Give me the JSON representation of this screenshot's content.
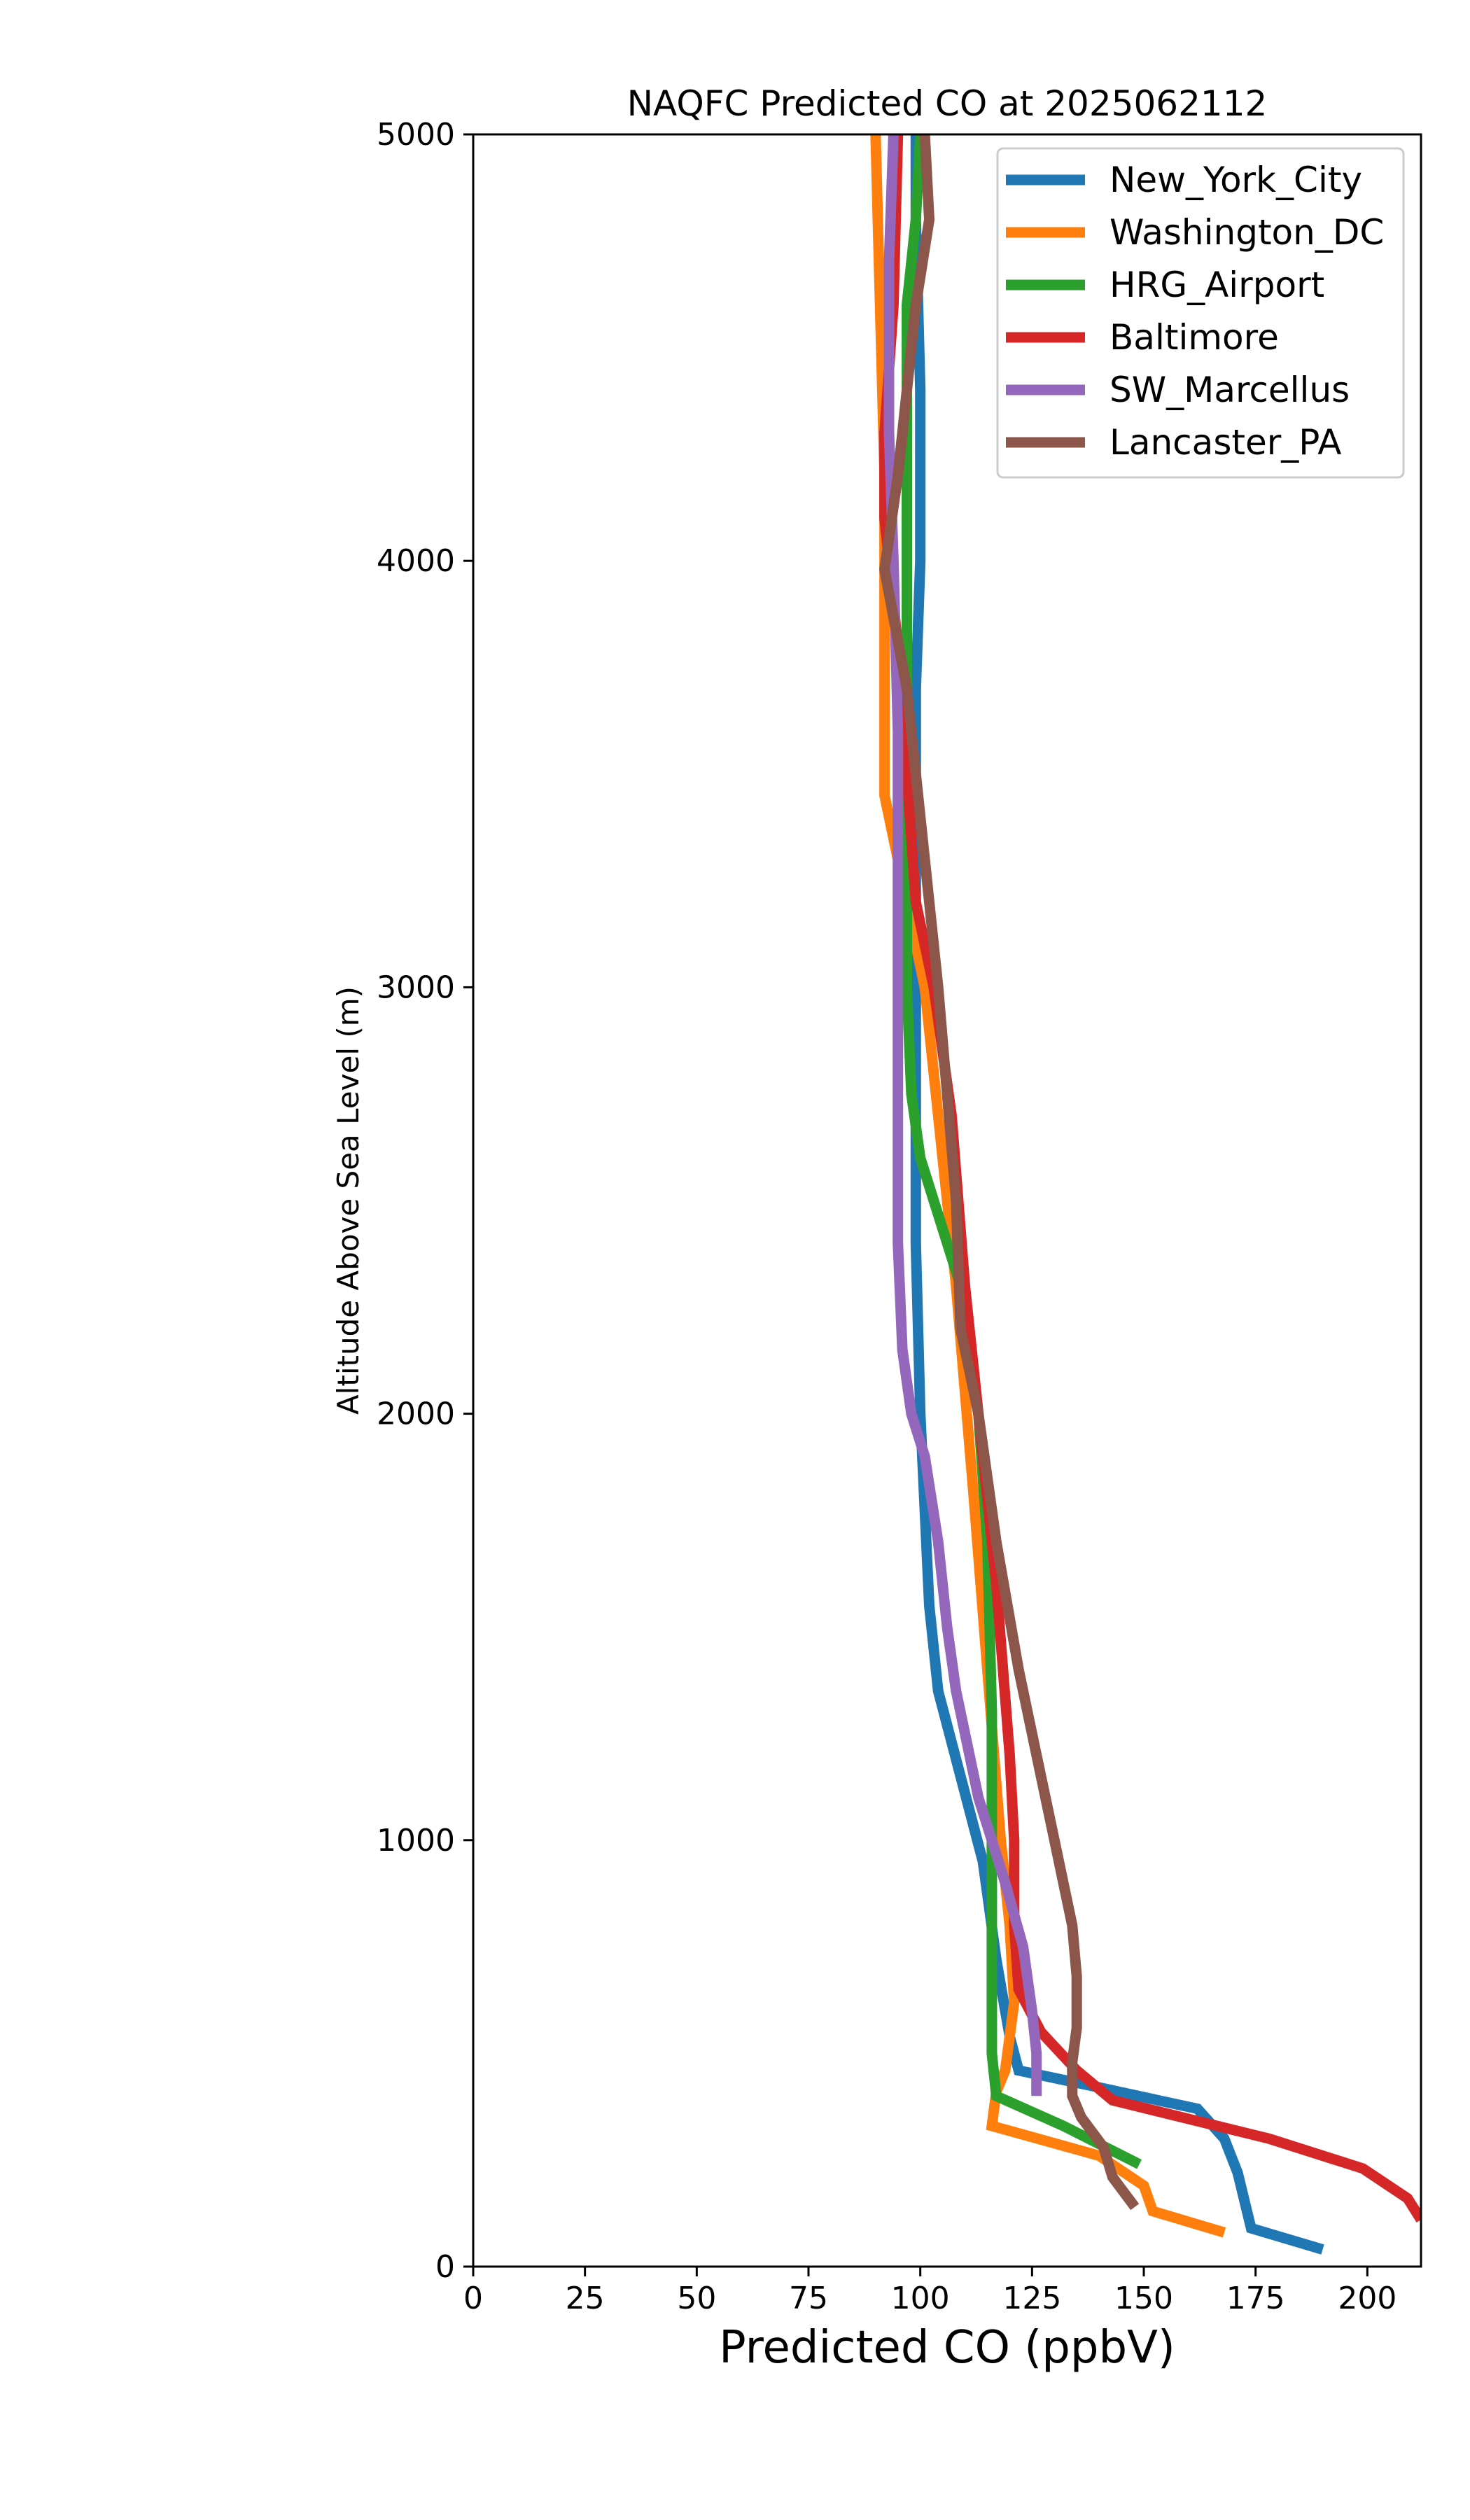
{
  "chart_data": {
    "type": "line",
    "title": "NAQFC Predicted CO at 2025062112",
    "xlabel": "Predicted CO (ppbV)",
    "ylabel": "Altitude Above Sea Level (m)",
    "xlim": [
      0,
      212
    ],
    "ylim": [
      0,
      5000
    ],
    "x_ticks": [
      0,
      25,
      50,
      75,
      100,
      125,
      150,
      175,
      200
    ],
    "y_ticks": [
      0,
      1000,
      2000,
      3000,
      4000,
      5000
    ],
    "grid": false,
    "legend": "top-right",
    "series": [
      {
        "name": "New_York_City",
        "color": "#1f77b4",
        "points": [
          [
            190,
            40
          ],
          [
            174,
            90
          ],
          [
            171,
            220
          ],
          [
            168,
            300
          ],
          [
            162,
            370
          ],
          [
            140,
            420
          ],
          [
            122,
            460
          ],
          [
            120,
            540
          ],
          [
            117,
            720
          ],
          [
            114,
            950
          ],
          [
            104,
            1350
          ],
          [
            102,
            1550
          ],
          [
            100,
            2000
          ],
          [
            99,
            2400
          ],
          [
            99,
            2800
          ],
          [
            99,
            3200
          ],
          [
            99,
            3700
          ],
          [
            100,
            4000
          ],
          [
            100,
            4400
          ],
          [
            99,
            4800
          ],
          [
            99,
            5000
          ]
        ]
      },
      {
        "name": "Washington_DC",
        "color": "#ff7f0e",
        "points": [
          [
            168,
            80
          ],
          [
            152,
            130
          ],
          [
            150,
            190
          ],
          [
            140,
            260
          ],
          [
            116,
            330
          ],
          [
            117,
            410
          ],
          [
            119,
            460
          ],
          [
            121,
            620
          ],
          [
            120,
            800
          ],
          [
            118,
            1000
          ],
          [
            115,
            1400
          ],
          [
            112,
            1800
          ],
          [
            108,
            2300
          ],
          [
            104,
            2700
          ],
          [
            101,
            3000
          ],
          [
            97,
            3200
          ],
          [
            92,
            3450
          ],
          [
            92,
            3800
          ],
          [
            92,
            4200
          ],
          [
            91,
            4600
          ],
          [
            90,
            5000
          ]
        ]
      },
      {
        "name": "HRG_Airport",
        "color": "#2ca02c",
        "points": [
          [
            149,
            240
          ],
          [
            132,
            330
          ],
          [
            117,
            400
          ],
          [
            116,
            500
          ],
          [
            116,
            700
          ],
          [
            116,
            1000
          ],
          [
            116,
            1300
          ],
          [
            115,
            1700
          ],
          [
            113,
            2000
          ],
          [
            109,
            2300
          ],
          [
            100,
            2600
          ],
          [
            98,
            2750
          ],
          [
            97,
            3000
          ],
          [
            97,
            3400
          ],
          [
            97,
            3800
          ],
          [
            97,
            4200
          ],
          [
            97,
            4600
          ],
          [
            99,
            4800
          ],
          [
            100,
            5000
          ]
        ]
      },
      {
        "name": "Baltimore",
        "color": "#d62728",
        "points": [
          [
            212,
            110
          ],
          [
            209,
            160
          ],
          [
            199,
            230
          ],
          [
            178,
            300
          ],
          [
            143,
            390
          ],
          [
            135,
            460
          ],
          [
            127,
            550
          ],
          [
            122,
            650
          ],
          [
            121,
            800
          ],
          [
            121,
            1000
          ],
          [
            120,
            1200
          ],
          [
            117,
            1600
          ],
          [
            113,
            2000
          ],
          [
            110,
            2300
          ],
          [
            107,
            2700
          ],
          [
            103,
            3000
          ],
          [
            99,
            3200
          ],
          [
            97,
            3500
          ],
          [
            95,
            3800
          ],
          [
            92,
            4100
          ],
          [
            92,
            4300
          ],
          [
            94,
            4600
          ],
          [
            95,
            5000
          ]
        ]
      },
      {
        "name": "SW_Marcellus",
        "color": "#9467bd",
        "points": [
          [
            126,
            400
          ],
          [
            126,
            500
          ],
          [
            125,
            600
          ],
          [
            123,
            750
          ],
          [
            119,
            900
          ],
          [
            113,
            1100
          ],
          [
            108,
            1350
          ],
          [
            106,
            1500
          ],
          [
            104,
            1700
          ],
          [
            101,
            1900
          ],
          [
            98,
            2000
          ],
          [
            96,
            2150
          ],
          [
            95,
            2400
          ],
          [
            95,
            2800
          ],
          [
            95,
            3200
          ],
          [
            95,
            3600
          ],
          [
            94,
            4000
          ],
          [
            93,
            4300
          ],
          [
            93,
            4700
          ],
          [
            94,
            5000
          ]
        ]
      },
      {
        "name": "Lancaster_PA",
        "color": "#8c564b",
        "points": [
          [
            148,
            140
          ],
          [
            143,
            210
          ],
          [
            141,
            280
          ],
          [
            136,
            350
          ],
          [
            134,
            400
          ],
          [
            134,
            480
          ],
          [
            135,
            560
          ],
          [
            135,
            680
          ],
          [
            134,
            800
          ],
          [
            130,
            1000
          ],
          [
            126,
            1200
          ],
          [
            122,
            1400
          ],
          [
            117,
            1700
          ],
          [
            113,
            2000
          ],
          [
            109,
            2200
          ],
          [
            108,
            2500
          ],
          [
            104,
            3000
          ],
          [
            101,
            3300
          ],
          [
            99,
            3500
          ],
          [
            97,
            3700
          ],
          [
            92,
            3980
          ],
          [
            95,
            4200
          ],
          [
            97,
            4400
          ],
          [
            99,
            4600
          ],
          [
            102,
            4800
          ],
          [
            101,
            5000
          ]
        ]
      }
    ]
  }
}
